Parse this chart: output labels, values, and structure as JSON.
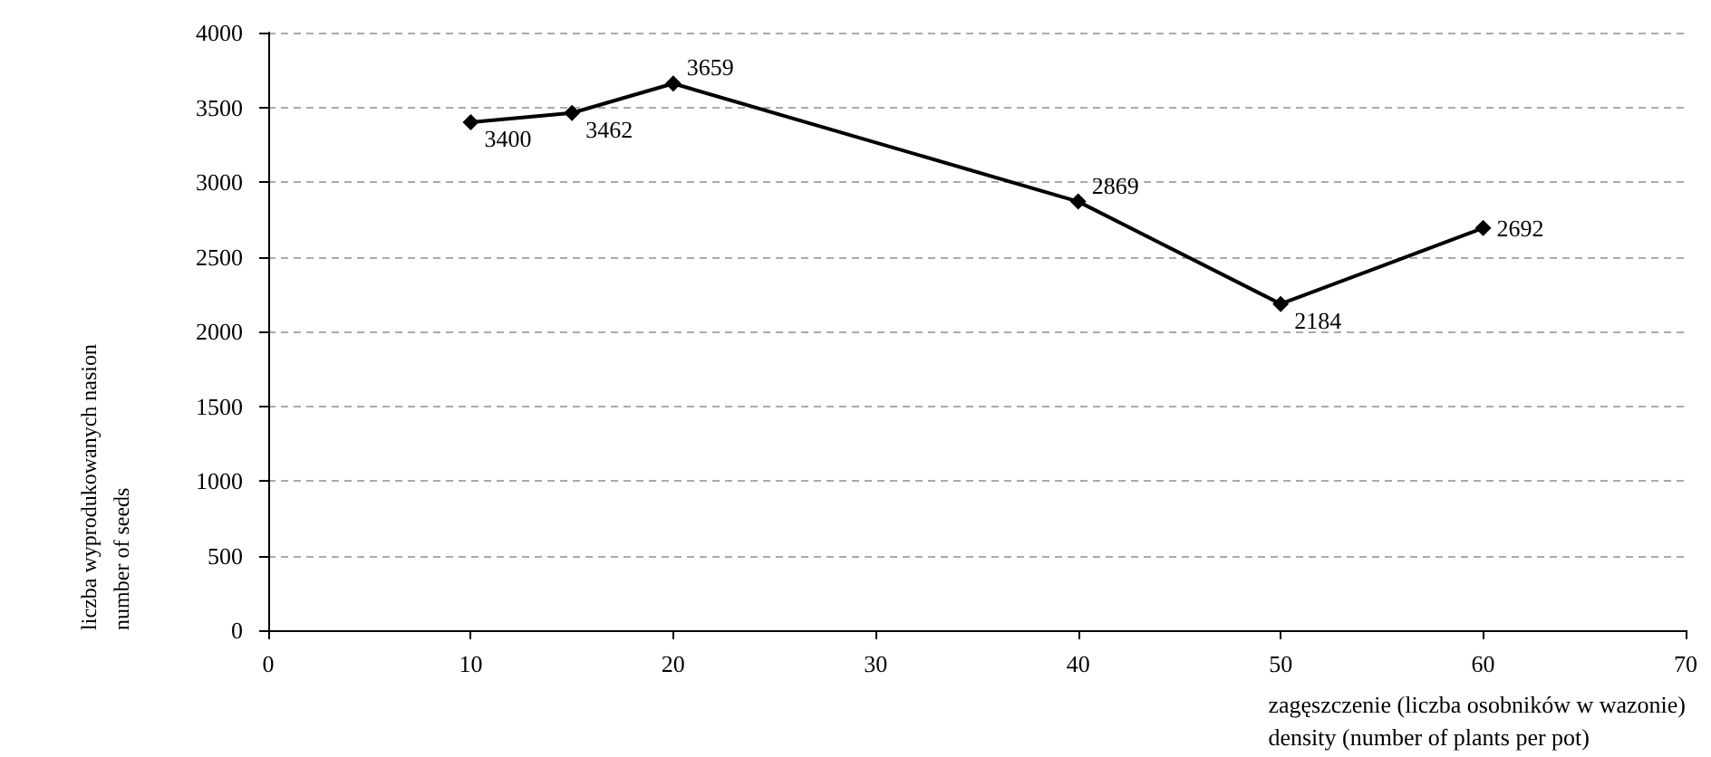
{
  "chart_data": {
    "type": "line",
    "xlabel": "zagęszczenie (liczba osobników w wazonie)\ndensity (number of plants per pot)",
    "ylabel": "liczba wyprodukowanych nasion\nnumber of seeds",
    "x": [
      10,
      15,
      20,
      40,
      50,
      60
    ],
    "series": [
      {
        "color": "#000000",
        "values": [
          3400,
          3462,
          3659,
          2869,
          2184,
          2692
        ]
      }
    ],
    "xlim": [
      0,
      70
    ],
    "xticks": [
      0,
      10,
      20,
      30,
      40,
      50,
      60,
      70
    ],
    "ylim": [
      0,
      4000
    ],
    "yticks": [
      0,
      500,
      1000,
      1500,
      2000,
      2500,
      3000,
      3500,
      4000
    ],
    "grid": "y",
    "marker": "diamond",
    "line_style": "solid",
    "data_labels": true
  }
}
